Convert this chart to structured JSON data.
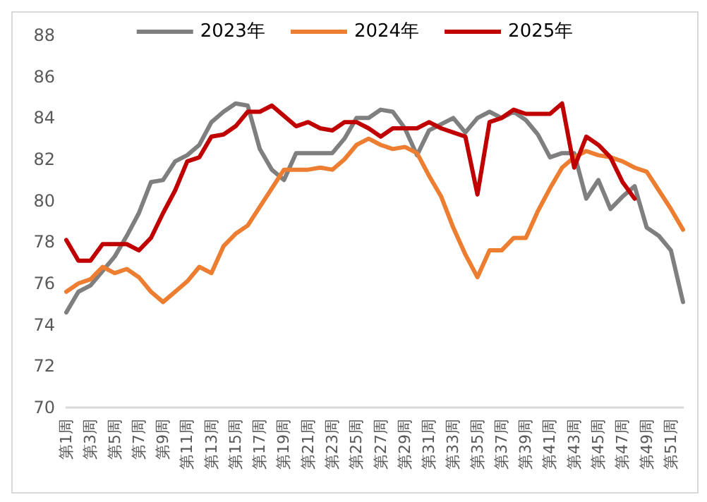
{
  "chart_data": {
    "type": "line",
    "categories": [
      "第1周",
      null,
      "第3周",
      null,
      "第5周",
      null,
      "第7周",
      null,
      "第9周",
      null,
      "第11周",
      null,
      "第13周",
      null,
      "第15周",
      null,
      "第17周",
      null,
      "第19周",
      null,
      "第21周",
      null,
      "第23周",
      null,
      "第25周",
      null,
      "第27周",
      null,
      "第29周",
      null,
      "第31周",
      null,
      "第33周",
      null,
      "第35周",
      null,
      "第37周",
      null,
      "第39周",
      null,
      "第41周",
      null,
      "第43周",
      null,
      "第45周",
      null,
      "第47周",
      null,
      "第49周",
      null,
      "第51周",
      null
    ],
    "series": [
      {
        "name": "2023年",
        "color": "#7f7f7f",
        "values": [
          74.6,
          75.6,
          75.9,
          76.6,
          77.3,
          78.3,
          79.4,
          80.9,
          81.0,
          81.9,
          82.2,
          82.7,
          83.8,
          84.3,
          84.7,
          84.6,
          82.5,
          81.5,
          81.0,
          82.3,
          82.3,
          82.3,
          82.3,
          83.0,
          84.0,
          84.0,
          84.4,
          84.3,
          83.5,
          82.2,
          83.4,
          83.7,
          84.0,
          83.3,
          84.0,
          84.3,
          84.0,
          84.3,
          83.9,
          83.2,
          82.1,
          82.3,
          82.3,
          80.1,
          81.0,
          79.6,
          80.2,
          80.7,
          78.7,
          78.3,
          77.6,
          75.1
        ]
      },
      {
        "name": "2024年",
        "color": "#ed7d31",
        "values": [
          75.6,
          76.0,
          76.2,
          76.8,
          76.5,
          76.7,
          76.3,
          75.6,
          75.1,
          75.6,
          76.1,
          76.8,
          76.5,
          77.8,
          78.4,
          78.8,
          79.7,
          80.6,
          81.5,
          81.5,
          81.5,
          81.6,
          81.5,
          82.0,
          82.7,
          83.0,
          82.7,
          82.5,
          82.6,
          82.3,
          81.2,
          80.2,
          78.7,
          77.4,
          76.3,
          77.6,
          77.6,
          78.2,
          78.2,
          79.5,
          80.6,
          81.6,
          82.1,
          82.4,
          82.2,
          82.1,
          81.9,
          81.6,
          81.4,
          80.5,
          79.6,
          78.6
        ]
      },
      {
        "name": "2025年",
        "color": "#c00000",
        "values": [
          78.1,
          77.1,
          77.1,
          77.9,
          77.9,
          77.9,
          77.6,
          78.2,
          79.4,
          80.5,
          81.9,
          82.1,
          83.1,
          83.2,
          83.6,
          84.3,
          84.3,
          84.6,
          84.1,
          83.6,
          83.8,
          83.5,
          83.4,
          83.8,
          83.8,
          83.5,
          83.1,
          83.5,
          83.5,
          83.5,
          83.8,
          83.5,
          83.3,
          83.1,
          80.3,
          83.8,
          84.0,
          84.4,
          84.2,
          84.2,
          84.2,
          84.7,
          81.6,
          83.1,
          82.7,
          82.1,
          80.9,
          80.1,
          null,
          null,
          null,
          null
        ]
      }
    ],
    "ylim": [
      70,
      88
    ],
    "yticks": [
      70,
      72,
      74,
      76,
      78,
      80,
      82,
      84,
      86,
      88
    ],
    "grid": false,
    "legend": "top",
    "marker": "none",
    "line_style": "solid"
  }
}
